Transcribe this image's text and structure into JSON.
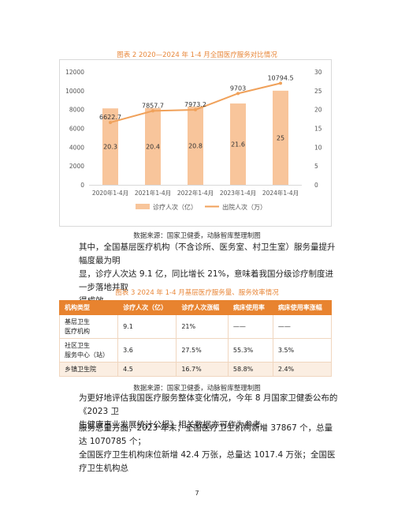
{
  "figure2": {
    "caption": "图表 2 2020—2024 年 1-4 月全国医疗服务对比情况",
    "source": "数据来源：国家卫健委，动脉智库整理制图"
  },
  "chart_data": {
    "type": "bar",
    "categories": [
      "2020年1-4月",
      "2021年1-4月",
      "2022年1-4月",
      "2023年1-4月",
      "2024年1-4月"
    ],
    "series": [
      {
        "name": "诊疗人次（亿）",
        "type": "bar",
        "axis": "right",
        "values": [
          20.3,
          20.4,
          20.8,
          21.6,
          25
        ],
        "color": "#f8c59b"
      },
      {
        "name": "出院人次（万）",
        "type": "line",
        "axis": "left",
        "values": [
          6622.7,
          7857.7,
          7973.2,
          9703,
          10794.5
        ],
        "color": "#f0a15a"
      }
    ],
    "data_labels_bar": [
      "20.3",
      "20.4",
      "20.8",
      "21.6",
      "25"
    ],
    "data_labels_line": [
      "6622.7",
      "7857.7",
      "7973.2",
      "9703",
      "10794.5"
    ],
    "y_left": {
      "min": 0,
      "max": 12000,
      "ticks": [
        "0",
        "2000",
        "4000",
        "6000",
        "8000",
        "10000",
        "12000"
      ]
    },
    "y_right": {
      "min": 0,
      "max": 30,
      "ticks": [
        "0",
        "5",
        "10",
        "15",
        "20",
        "25",
        "30"
      ]
    },
    "legend": "bottom",
    "grid": false
  },
  "para1": {
    "l1": "其中，全国基层医疗机构（不含诊所、医务室、村卫生室）服务量提升幅度最为明",
    "l2": "显，诊疗人次达 9.1 亿，同比增长 21%，意味着我国分级诊疗制度进一步落地并取",
    "l3": "得成效。"
  },
  "table3": {
    "caption": "图表 3 2024 年 1-4 月基层医疗服务量、服务效率情况",
    "headers": [
      "机构类型",
      "诊疗人次（亿）",
      "诊疗人次涨幅",
      "病床使用率",
      "病床使用率涨幅"
    ],
    "rows": [
      {
        "type_l1": "基层卫生",
        "type_l2": "医疗机构",
        "visits": "9.1",
        "visits_growth": "21%",
        "bed_rate": "——",
        "bed_growth": "——"
      },
      {
        "type_l1": "社区卫生",
        "type_l2": "服务中心（站）",
        "visits": "3.6",
        "visits_growth": "27.5%",
        "bed_rate": "55.3%",
        "bed_growth": "3.5%"
      },
      {
        "type_l1": "乡镇卫生院",
        "type_l2": "",
        "visits": "4.5",
        "visits_growth": "16.7%",
        "bed_rate": "58.8%",
        "bed_growth": "2.4%"
      }
    ],
    "source": "数据来源：国家卫健委，动脉智库整理制图"
  },
  "para2": {
    "l1": "为更好地评估我国医疗服务整体变化情况，今年 8 月国家卫健委公布的《2023 卫",
    "l2": "生健康事业发展统计公报》相关数据亦可作为参考。"
  },
  "para3": {
    "l1": "服务总量方面，2023 年末，全国医疗卫生机构新增 37867 个，总量达 1070785 个；",
    "l2": "全国医疗卫生机构床位新增 42.4 万张，总量达 1017.4 万张；全国医疗卫生机构总"
  },
  "page_number": "7"
}
